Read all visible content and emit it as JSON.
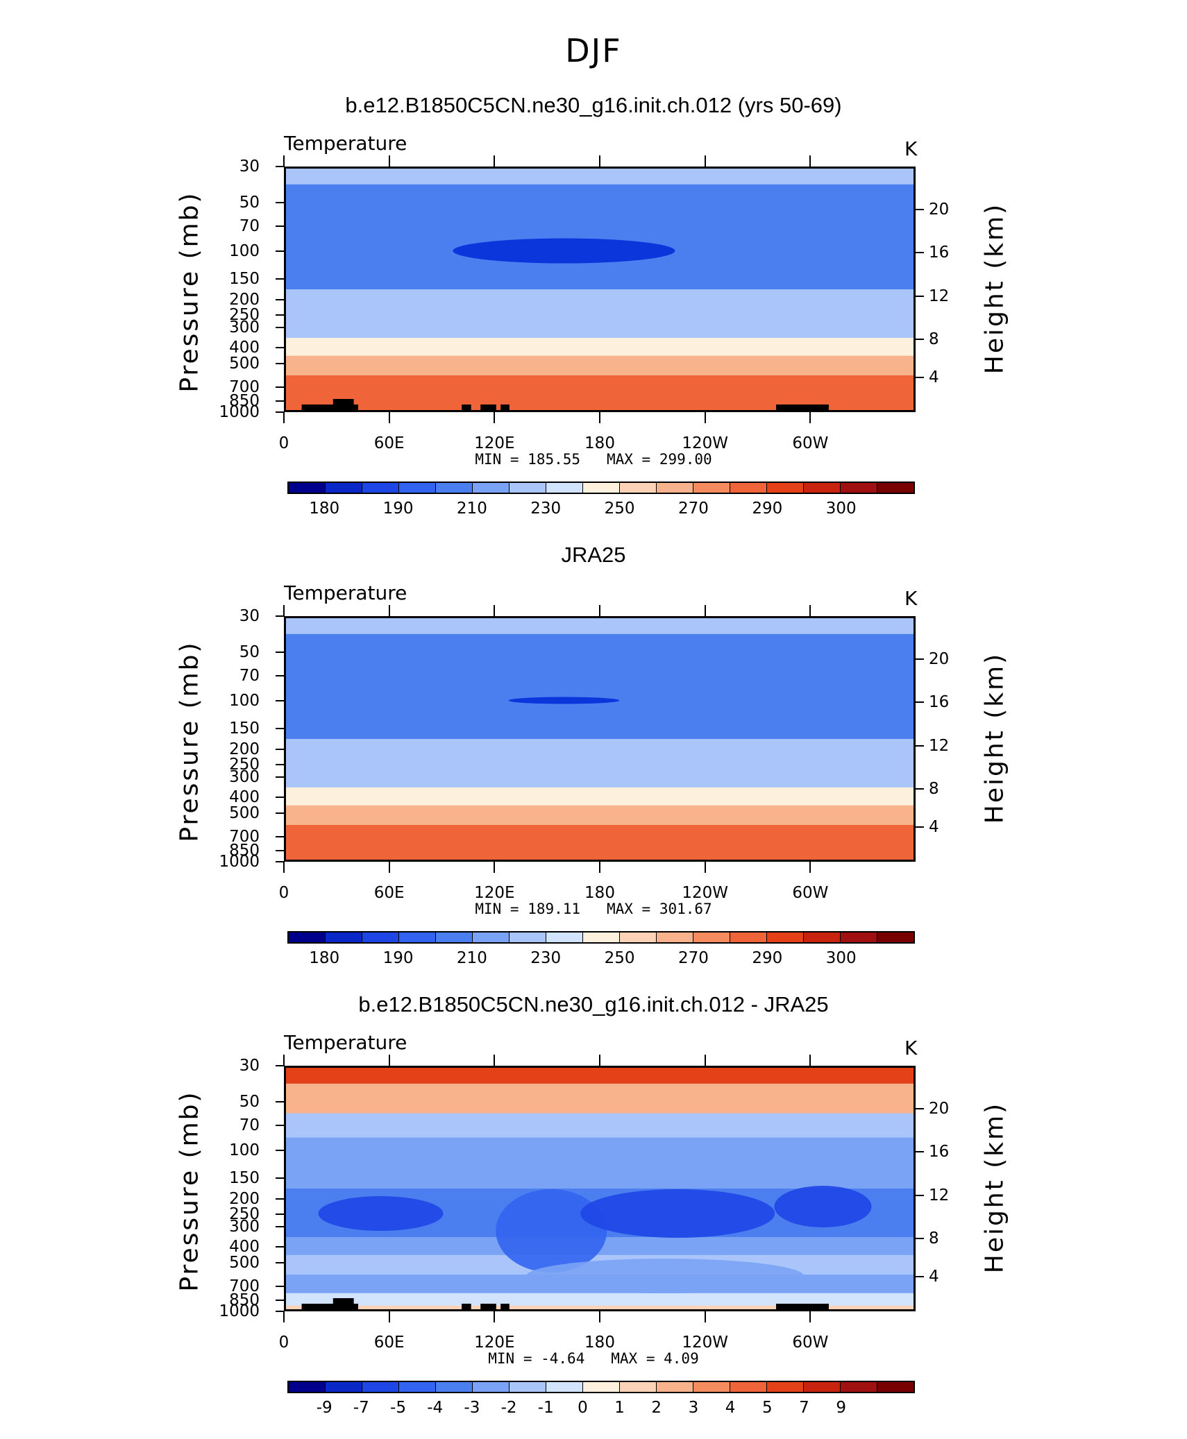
{
  "figure": {
    "title": "DJF",
    "x_tick_labels": [
      "0",
      "60E",
      "120E",
      "180",
      "120W",
      "60W"
    ],
    "pressure_tick_labels": [
      "30",
      "50",
      "70",
      "100",
      "150",
      "200",
      "250",
      "300",
      "400",
      "500",
      "700",
      "850",
      "1000"
    ],
    "height_tick_labels": [
      "20",
      "16",
      "12",
      "8",
      "4"
    ],
    "left_axis_title": "Pressure (mb)",
    "right_axis_title": "Height (km)"
  },
  "chart_data": [
    {
      "type": "heatmap",
      "title": "b.e12.B1850C5CN.ne30_g16.init.ch.012 (yrs 50-69)",
      "variable": "Temperature",
      "units": "K",
      "min_label": "MIN =",
      "min_value": "185.55",
      "max_label": "MAX =",
      "max_value": "299.00",
      "xlabel": "",
      "ylabel": "Pressure (mb)",
      "colorbar_labels": [
        "180",
        "190",
        "210",
        "230",
        "250",
        "270",
        "290",
        "300"
      ],
      "colorbar_colors": [
        "#00008c",
        "#0a28c8",
        "#1e46e6",
        "#3264f0",
        "#4b7ff0",
        "#7ba3f5",
        "#a9c5fa",
        "#d2e4fc",
        "#fdf0dc",
        "#fcd3b6",
        "#f9b38c",
        "#f48c5f",
        "#f0643a",
        "#e44119",
        "#c8230f",
        "#a01010",
        "#780000"
      ],
      "band_values_by_pressure": [
        {
          "p": 30,
          "value": 213
        },
        {
          "p": 50,
          "value": 207
        },
        {
          "p": 70,
          "value": 200
        },
        {
          "p": 100,
          "value": 196
        },
        {
          "p": 150,
          "value": 204
        },
        {
          "p": 200,
          "value": 211
        },
        {
          "p": 250,
          "value": 219
        },
        {
          "p": 300,
          "value": 228
        },
        {
          "p": 400,
          "value": 244
        },
        {
          "p": 500,
          "value": 255
        },
        {
          "p": 700,
          "value": 270
        },
        {
          "p": 850,
          "value": 280
        },
        {
          "p": 1000,
          "value": 287
        }
      ]
    },
    {
      "type": "heatmap",
      "title": "JRA25",
      "variable": "Temperature",
      "units": "K",
      "min_label": "MIN =",
      "min_value": "189.11",
      "max_label": "MAX =",
      "max_value": "301.67",
      "xlabel": "",
      "ylabel": "Pressure (mb)",
      "colorbar_labels": [
        "180",
        "190",
        "210",
        "230",
        "250",
        "270",
        "290",
        "300"
      ],
      "colorbar_colors": [
        "#00008c",
        "#0a28c8",
        "#1e46e6",
        "#3264f0",
        "#4b7ff0",
        "#7ba3f5",
        "#a9c5fa",
        "#d2e4fc",
        "#fdf0dc",
        "#fcd3b6",
        "#f9b38c",
        "#f48c5f",
        "#f0643a",
        "#e44119",
        "#c8230f",
        "#a01010",
        "#780000"
      ],
      "band_values_by_pressure": [
        {
          "p": 30,
          "value": 214
        },
        {
          "p": 50,
          "value": 208
        },
        {
          "p": 70,
          "value": 201
        },
        {
          "p": 100,
          "value": 198
        },
        {
          "p": 150,
          "value": 205
        },
        {
          "p": 200,
          "value": 212
        },
        {
          "p": 250,
          "value": 220
        },
        {
          "p": 300,
          "value": 229
        },
        {
          "p": 400,
          "value": 245
        },
        {
          "p": 500,
          "value": 256
        },
        {
          "p": 700,
          "value": 271
        },
        {
          "p": 850,
          "value": 282
        },
        {
          "p": 1000,
          "value": 289
        }
      ]
    },
    {
      "type": "heatmap",
      "title": "b.e12.B1850C5CN.ne30_g16.init.ch.012 - JRA25",
      "variable": "Temperature",
      "units": "K",
      "min_label": "MIN =",
      "min_value": "-4.64",
      "max_label": "MAX =",
      "max_value": "4.09",
      "xlabel": "",
      "ylabel": "Pressure (mb)",
      "colorbar_labels": [
        "-9",
        "-7",
        "-5",
        "-4",
        "-3",
        "-2",
        "-1",
        "0",
        "1",
        "2",
        "3",
        "4",
        "5",
        "7",
        "9"
      ],
      "colorbar_colors": [
        "#00008c",
        "#0a28c8",
        "#1e46e6",
        "#3264f0",
        "#4b7ff0",
        "#7ba3f5",
        "#a9c5fa",
        "#d2e4fc",
        "#fdf0dc",
        "#fcd3b6",
        "#f9b38c",
        "#f48c5f",
        "#f0643a",
        "#e44119",
        "#c8230f",
        "#a01010",
        "#780000"
      ],
      "band_values_by_pressure": [
        {
          "p": 30,
          "value": 4
        },
        {
          "p": 50,
          "value": 1
        },
        {
          "p": 70,
          "value": -2
        },
        {
          "p": 100,
          "value": -3
        },
        {
          "p": 150,
          "value": -3
        },
        {
          "p": 200,
          "value": -4
        },
        {
          "p": 250,
          "value": -4
        },
        {
          "p": 300,
          "value": -4
        },
        {
          "p": 400,
          "value": -3
        },
        {
          "p": 500,
          "value": -2
        },
        {
          "p": 700,
          "value": -3
        },
        {
          "p": 850,
          "value": -1
        },
        {
          "p": 1000,
          "value": 0
        }
      ]
    }
  ]
}
